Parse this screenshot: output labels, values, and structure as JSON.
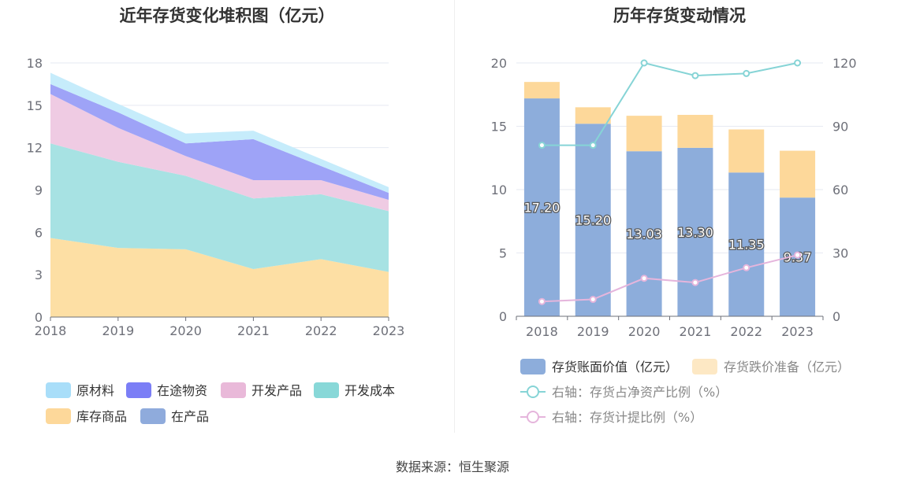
{
  "left_title": "近年存货变化堆积图（亿元）",
  "right_title": "历年存货变动情况",
  "source": "数据来源：恒生聚源",
  "chart_data": [
    {
      "type": "area",
      "title": "近年存货变化堆积图（亿元）",
      "x": [
        "2018",
        "2019",
        "2020",
        "2021",
        "2022",
        "2023"
      ],
      "ylim": [
        0,
        18
      ],
      "yticks": [
        0,
        3,
        6,
        9,
        12,
        15,
        18
      ],
      "grid": true,
      "legend_position": "bottom",
      "series": [
        {
          "name": "库存商品",
          "color": "#fddfa4",
          "values": [
            5.6,
            4.9,
            4.8,
            3.4,
            4.1,
            3.2
          ]
        },
        {
          "name": "开发成本",
          "color": "#a7e2e3",
          "values": [
            6.7,
            6.1,
            5.2,
            5.0,
            4.6,
            4.3
          ]
        },
        {
          "name": "开发产品",
          "color": "#efcbe3",
          "values": [
            3.5,
            2.4,
            1.4,
            1.3,
            1.0,
            0.8
          ]
        },
        {
          "name": "在途物资",
          "color": "#9ea3f7",
          "values": [
            0.7,
            1.1,
            0.9,
            2.9,
            1.0,
            0.5
          ]
        },
        {
          "name": "原材料",
          "color": "#c6ecfb",
          "values": [
            0.8,
            0.6,
            0.7,
            0.6,
            0.5,
            0.4
          ]
        },
        {
          "name": "在产品",
          "color": "#8fabdc",
          "values": [
            0,
            0,
            0,
            0,
            0,
            0
          ]
        }
      ],
      "legend": [
        {
          "name": "原材料",
          "color": "#a9def9"
        },
        {
          "name": "在途物资",
          "color": "#7b7ef6"
        },
        {
          "name": "开发产品",
          "color": "#e9b9d9"
        },
        {
          "name": "开发成本",
          "color": "#88d8d8"
        },
        {
          "name": "库存商品",
          "color": "#fdd89a"
        },
        {
          "name": "在产品",
          "color": "#8fabdc"
        }
      ]
    },
    {
      "type": "bar",
      "title": "历年存货变动情况",
      "categories": [
        "2018",
        "2019",
        "2020",
        "2021",
        "2022",
        "2023"
      ],
      "ylim": [
        0,
        20
      ],
      "yticks": [
        0,
        5,
        10,
        15,
        20
      ],
      "y2lim": [
        0,
        120
      ],
      "y2ticks": [
        0,
        30,
        60,
        90,
        120
      ],
      "grid": true,
      "legend_position": "bottom",
      "series": [
        {
          "name": "存货账面价值（亿元）",
          "color": "#8daddb",
          "values": [
            17.2,
            15.2,
            13.03,
            13.3,
            11.35,
            9.37
          ],
          "labels": [
            "17.20",
            "15.20",
            "13.03",
            "13.30",
            "11.35",
            "9.37"
          ]
        },
        {
          "name": "存货跌价准备（亿元）",
          "color": "#fdd89a",
          "values": [
            1.3,
            1.3,
            2.8,
            2.6,
            3.4,
            3.7
          ]
        },
        {
          "name": "右轴：存货占净资产比例（%）",
          "color": "#86d4d6",
          "axis": "right",
          "line": true,
          "values": [
            81,
            81,
            120,
            114,
            115,
            120
          ]
        },
        {
          "name": "右轴：存货计提比例（%）",
          "color": "#e5b5dc",
          "axis": "right",
          "line": true,
          "values": [
            7,
            8,
            18,
            16,
            23,
            29
          ]
        }
      ]
    }
  ]
}
